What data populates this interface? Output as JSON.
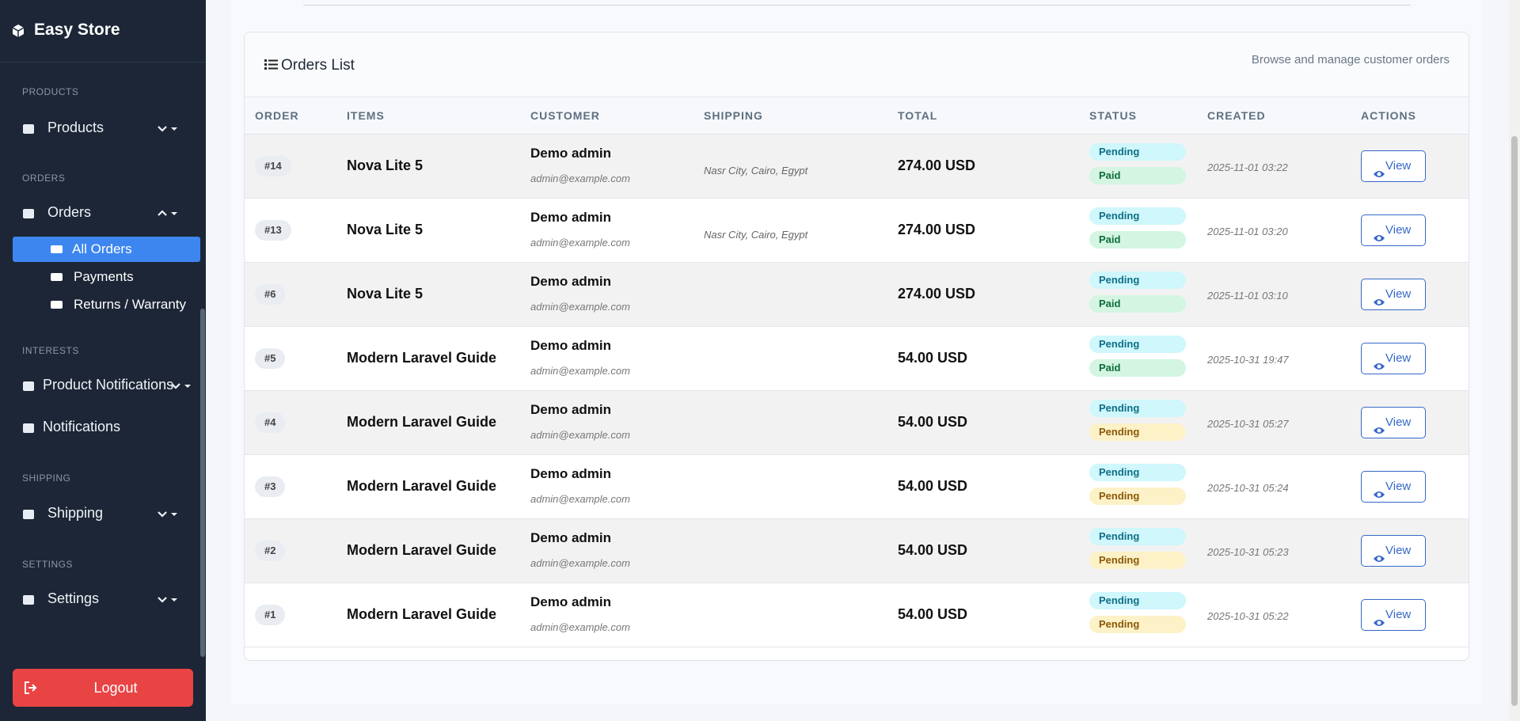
{
  "sidebar": {
    "brand": "Easy Store",
    "sections": [
      {
        "heading": "PRODUCTS",
        "items": [
          {
            "label": "Products"
          }
        ]
      },
      {
        "heading": "ORDERS",
        "items": [
          {
            "label": "Orders",
            "children": [
              "All Orders",
              "Payments",
              "Returns / Warranty"
            ]
          }
        ]
      },
      {
        "heading": "INTERESTS",
        "items": [
          {
            "label": "Product Notifications"
          },
          {
            "label": "Notifications"
          }
        ]
      },
      {
        "heading": "SHIPPING",
        "items": [
          {
            "label": "Shipping"
          }
        ]
      },
      {
        "heading": "SETTINGS",
        "items": [
          {
            "label": "Settings"
          }
        ]
      }
    ],
    "logout": "Logout"
  },
  "card": {
    "title": "Orders List",
    "subtitle": "Browse and manage customer orders"
  },
  "table": {
    "columns": [
      "ORDER",
      "ITEMS",
      "CUSTOMER",
      "SHIPPING",
      "TOTAL",
      "STATUS",
      "CREATED",
      "ACTIONS"
    ],
    "rows": [
      {
        "order": "#14",
        "items": "Nova Lite 5",
        "customer": "Demo admin",
        "email": "admin@example.com",
        "shipping": "Nasr City, Cairo, Egypt",
        "total": "274.00 USD",
        "status": "Pending",
        "payment": "Paid",
        "created": "2025-11-01 03:22",
        "action": "View"
      },
      {
        "order": "#13",
        "items": "Nova Lite 5",
        "customer": "Demo admin",
        "email": "admin@example.com",
        "shipping": "Nasr City, Cairo, Egypt",
        "total": "274.00 USD",
        "status": "Pending",
        "payment": "Paid",
        "created": "2025-11-01 03:20",
        "action": "View"
      },
      {
        "order": "#6",
        "items": "Nova Lite 5",
        "customer": "Demo admin",
        "email": "admin@example.com",
        "total": "274.00 USD",
        "status": "Pending",
        "payment": "Paid",
        "created": "2025-11-01 03:10",
        "action": "View"
      },
      {
        "order": "#5",
        "items": "Modern Laravel Guide",
        "customer": "Demo admin",
        "email": "admin@example.com",
        "total": "54.00 USD",
        "status": "Pending",
        "payment": "Paid",
        "created": "2025-10-31 19:47",
        "action": "View"
      },
      {
        "order": "#4",
        "items": "Modern Laravel Guide",
        "customer": "Demo admin",
        "email": "admin@example.com",
        "total": "54.00 USD",
        "status": "Pending",
        "payment": "Pending",
        "created": "2025-10-31 05:27",
        "action": "View"
      },
      {
        "order": "#3",
        "items": "Modern Laravel Guide",
        "customer": "Demo admin",
        "email": "admin@example.com",
        "total": "54.00 USD",
        "status": "Pending",
        "payment": "Pending",
        "created": "2025-10-31 05:24",
        "action": "View"
      },
      {
        "order": "#2",
        "items": "Modern Laravel Guide",
        "customer": "Demo admin",
        "email": "admin@example.com",
        "total": "54.00 USD",
        "status": "Pending",
        "payment": "Pending",
        "created": "2025-10-31 05:23",
        "action": "View"
      },
      {
        "order": "#1",
        "items": "Modern Laravel Guide",
        "customer": "Demo admin",
        "email": "admin@example.com",
        "total": "54.00 USD",
        "status": "Pending",
        "payment": "Pending",
        "created": "2025-10-31 05:22",
        "action": "View"
      }
    ]
  }
}
